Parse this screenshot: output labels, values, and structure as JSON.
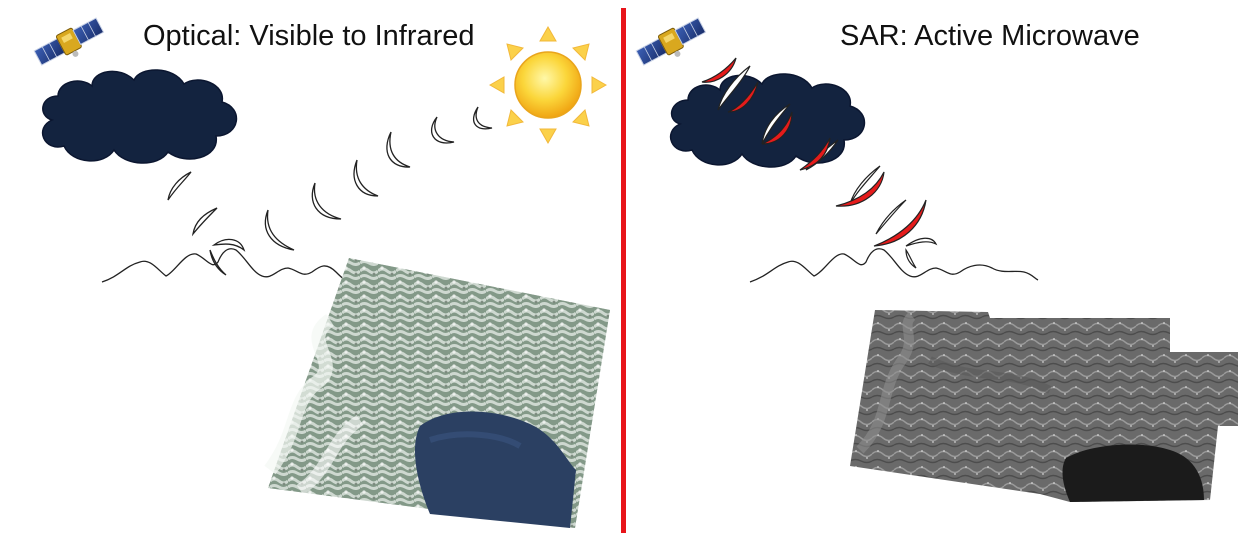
{
  "optical": {
    "title": "Optical: Visible to Infrared"
  },
  "sar": {
    "title": "SAR: Active Microwave"
  },
  "colors": {
    "divider": "#e8141a",
    "cloud": "#13233f",
    "sun": "#f7c51a",
    "sun_rays": "#fbd14a",
    "sar_wave": "#e51b1b",
    "optical_land": "#4d6a52",
    "sea": "#2b4062",
    "sar_land": "#6d6d6d"
  },
  "icons": {
    "satellite": "satellite-icon",
    "sun": "sun-icon",
    "cloud": "cloud-icon"
  }
}
